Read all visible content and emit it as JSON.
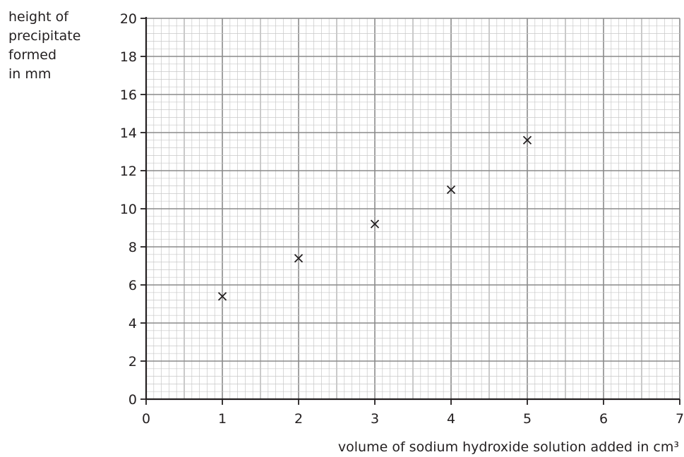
{
  "chart_data": {
    "type": "scatter",
    "title": "",
    "ylabel_lines": [
      "height of",
      "precipitate",
      "formed",
      "in mm"
    ],
    "xlabel": "volume of sodium hydroxide solution added in cm³",
    "xlim": [
      0,
      7
    ],
    "ylim": [
      0,
      20
    ],
    "x_ticks": [
      "0",
      "1",
      "2",
      "3",
      "4",
      "5",
      "6",
      "7"
    ],
    "y_ticks": [
      "0",
      "2",
      "4",
      "6",
      "8",
      "10",
      "12",
      "14",
      "16",
      "18",
      "20"
    ],
    "grid": true,
    "marker": "x",
    "points": [
      {
        "x": 1,
        "y": 5.4
      },
      {
        "x": 2,
        "y": 7.4
      },
      {
        "x": 3,
        "y": 9.2
      },
      {
        "x": 4,
        "y": 11.0
      },
      {
        "x": 5,
        "y": 13.6
      }
    ]
  }
}
